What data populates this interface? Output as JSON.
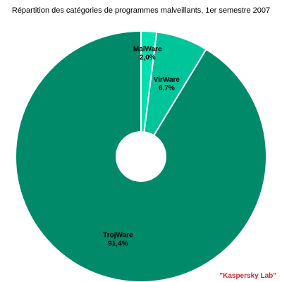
{
  "chart_data": {
    "type": "pie",
    "title": "Répartition des catégories de programmes malveillants, 1er semestre 2007",
    "slices": [
      {
        "name": "TrojWare",
        "value": 91.4,
        "value_label": "91,4%",
        "color": "#008a6a"
      },
      {
        "name": "VirWare",
        "value": 6.7,
        "value_label": "6,7%",
        "color": "#00c49a"
      },
      {
        "name": "MalWare",
        "value": 2.0,
        "value_label": "2,0%",
        "color": "#00e0b0"
      }
    ],
    "donut_hole": true,
    "slice_border_color": "#ffffff"
  },
  "footer": {
    "credit": "\"Kaspersky Lab\""
  }
}
